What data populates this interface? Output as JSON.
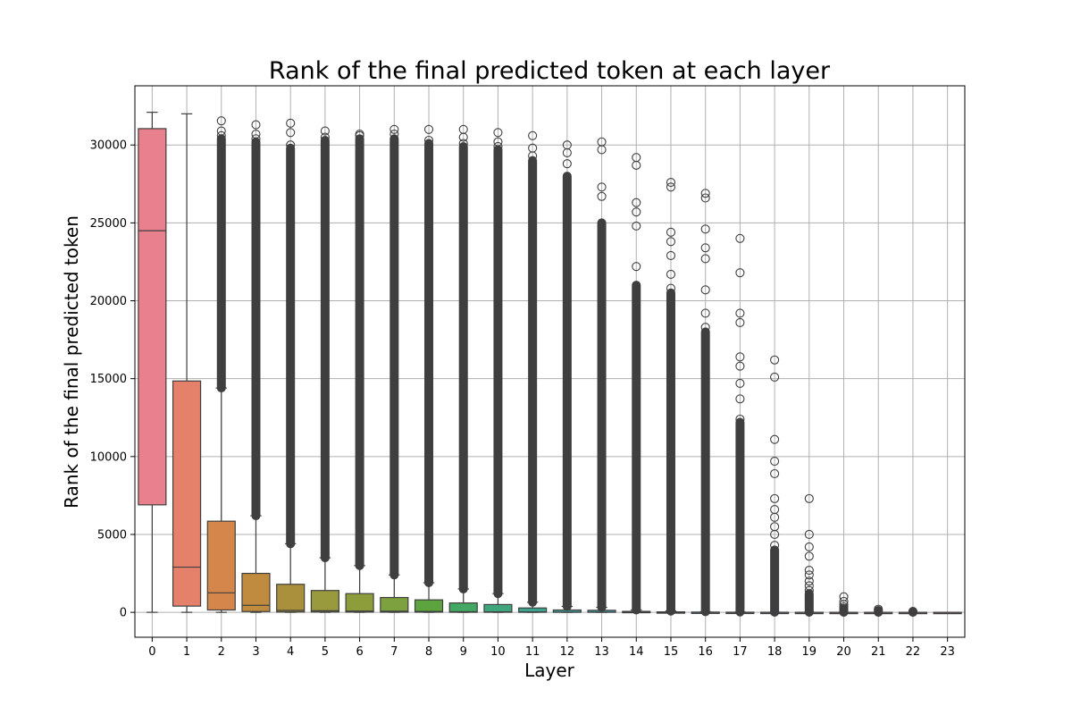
{
  "chart_data": {
    "type": "box",
    "title": "Rank of the final predicted token at each layer",
    "xlabel": "Layer",
    "ylabel": "Rank of the final predicted token",
    "ylim": [
      -1600,
      33800
    ],
    "yticks": [
      0,
      5000,
      10000,
      15000,
      20000,
      25000,
      30000
    ],
    "grid": true,
    "categories": [
      "0",
      "1",
      "2",
      "3",
      "4",
      "5",
      "6",
      "7",
      "8",
      "9",
      "10",
      "11",
      "12",
      "13",
      "14",
      "15",
      "16",
      "17",
      "18",
      "19",
      "20",
      "21",
      "22",
      "23"
    ],
    "boxes": [
      {
        "layer": "0",
        "min": 0,
        "q1": 6900,
        "median": 24500,
        "q3": 31050,
        "max": 32100,
        "color": "#e8808e",
        "outliers": [],
        "dense_outliers": null
      },
      {
        "layer": "1",
        "min": 0,
        "q1": 400,
        "median": 2900,
        "q3": 14850,
        "max": 32000,
        "color": "#e5806a",
        "outliers": [],
        "dense_outliers": null
      },
      {
        "layer": "2",
        "min": 0,
        "q1": 150,
        "median": 1250,
        "q3": 5850,
        "max": 14400,
        "color": "#d5864a",
        "outliers": [
          31550,
          30900,
          30600
        ],
        "dense_outliers": [
          14400,
          30400
        ]
      },
      {
        "layer": "3",
        "min": 0,
        "q1": 50,
        "median": 450,
        "q3": 2500,
        "max": 6200,
        "color": "#c08a3f",
        "outliers": [
          31300,
          30700,
          30400
        ],
        "dense_outliers": [
          6200,
          30200
        ]
      },
      {
        "layer": "4",
        "min": 0,
        "q1": 20,
        "median": 120,
        "q3": 1800,
        "max": 4400,
        "color": "#aa8f3d",
        "outliers": [
          31400,
          30800,
          30000
        ],
        "dense_outliers": [
          4400,
          29800
        ]
      },
      {
        "layer": "5",
        "min": 0,
        "q1": 20,
        "median": 100,
        "q3": 1400,
        "max": 3500,
        "color": "#989a3d",
        "outliers": [
          30900,
          30500
        ],
        "dense_outliers": [
          3500,
          30300
        ]
      },
      {
        "layer": "6",
        "min": 0,
        "q1": 15,
        "median": 80,
        "q3": 1200,
        "max": 3000,
        "color": "#8e9d3b",
        "outliers": [
          30700,
          30600
        ],
        "dense_outliers": [
          3000,
          30400
        ]
      },
      {
        "layer": "7",
        "min": 0,
        "q1": 10,
        "median": 70,
        "q3": 950,
        "max": 2400,
        "color": "#7ea13f",
        "outliers": [
          31000,
          30700
        ],
        "dense_outliers": [
          2400,
          30400
        ]
      },
      {
        "layer": "8",
        "min": 0,
        "q1": 10,
        "median": 60,
        "q3": 800,
        "max": 1900,
        "color": "#5ea43e",
        "outliers": [
          31000,
          30300
        ],
        "dense_outliers": [
          1900,
          30100
        ]
      },
      {
        "layer": "9",
        "min": 0,
        "q1": 5,
        "median": 40,
        "q3": 600,
        "max": 1500,
        "color": "#43a864",
        "outliers": [
          31000,
          30500,
          30100
        ],
        "dense_outliers": [
          1500,
          29900
        ]
      },
      {
        "layer": "10",
        "min": 0,
        "q1": 5,
        "median": 30,
        "q3": 500,
        "max": 1200,
        "color": "#3fa57d",
        "outliers": [
          30800,
          30200,
          29900
        ],
        "dense_outliers": [
          1200,
          29700
        ]
      },
      {
        "layer": "11",
        "min": 0,
        "q1": 3,
        "median": 20,
        "q3": 280,
        "max": 650,
        "color": "#3ea28e",
        "outliers": [
          30600,
          29800,
          29300
        ],
        "dense_outliers": [
          650,
          29000
        ]
      },
      {
        "layer": "12",
        "min": 0,
        "q1": 2,
        "median": 10,
        "q3": 150,
        "max": 380,
        "color": "#3e9f99",
        "outliers": [
          30000,
          29500,
          28800
        ],
        "dense_outliers": [
          380,
          28000
        ]
      },
      {
        "layer": "13",
        "min": 0,
        "q1": 2,
        "median": 10,
        "q3": 130,
        "max": 320,
        "color": "#3e9ca6",
        "outliers": [
          30200,
          29700,
          27300,
          26700
        ],
        "dense_outliers": [
          320,
          25000
        ]
      },
      {
        "layer": "14",
        "min": 0,
        "q1": 1,
        "median": 5,
        "q3": 60,
        "max": 150,
        "color": "#3e99b4",
        "outliers": [
          29200,
          28700,
          26300,
          25700,
          24800,
          22200
        ],
        "dense_outliers": [
          150,
          21000
        ]
      },
      {
        "layer": "15",
        "min": 0,
        "q1": 1,
        "median": 3,
        "q3": 30,
        "max": 80,
        "color": "#4595c6",
        "outliers": [
          27600,
          27300,
          24400,
          23800,
          22900,
          21700,
          20800
        ],
        "dense_outliers": [
          80,
          20500
        ]
      },
      {
        "layer": "16",
        "min": 0,
        "q1": 0,
        "median": 2,
        "q3": 15,
        "max": 40,
        "color": "#5e8dd6",
        "outliers": [
          26900,
          26600,
          24600,
          23400,
          22700,
          20700,
          19200,
          18300
        ],
        "dense_outliers": [
          40,
          18000
        ]
      },
      {
        "layer": "17",
        "min": 0,
        "q1": 0,
        "median": 1,
        "q3": 8,
        "max": 20,
        "color": "#8485dc",
        "outliers": [
          24000,
          21800,
          19200,
          18600,
          16400,
          15800,
          14700,
          13700,
          12400
        ],
        "dense_outliers": [
          20,
          12200
        ]
      },
      {
        "layer": "18",
        "min": 0,
        "q1": 0,
        "median": 0,
        "q3": 4,
        "max": 10,
        "color": "#a480dc",
        "outliers": [
          16200,
          15100,
          11100,
          9700,
          8900,
          7300,
          6600,
          6100,
          5500,
          5000,
          4300
        ],
        "dense_outliers": [
          10,
          4000
        ]
      },
      {
        "layer": "19",
        "min": 0,
        "q1": 0,
        "median": 0,
        "q3": 2,
        "max": 5,
        "color": "#c07ad6",
        "outliers": [
          7300,
          5000,
          4200,
          3600,
          2700,
          2400,
          2000,
          1700,
          1400
        ],
        "dense_outliers": [
          5,
          1200
        ]
      },
      {
        "layer": "20",
        "min": 0,
        "q1": 0,
        "median": 0,
        "q3": 1,
        "max": 2,
        "color": "#d276c7",
        "outliers": [
          1000,
          700,
          500,
          350,
          250
        ],
        "dense_outliers": [
          2,
          200
        ]
      },
      {
        "layer": "21",
        "min": 0,
        "q1": 0,
        "median": 0,
        "q3": 0,
        "max": 0,
        "color": "#e073b6",
        "outliers": [
          200,
          120
        ],
        "dense_outliers": [
          0,
          80
        ]
      },
      {
        "layer": "22",
        "min": 0,
        "q1": 0,
        "median": 0,
        "q3": 0,
        "max": 0,
        "color": "#e675a4",
        "outliers": [
          60,
          30
        ],
        "dense_outliers": [
          0,
          20
        ]
      },
      {
        "layer": "23",
        "min": 0,
        "q1": 0,
        "median": 0,
        "q3": 0,
        "max": 0,
        "color": "#e87896",
        "outliers": [],
        "dense_outliers": null
      }
    ]
  }
}
